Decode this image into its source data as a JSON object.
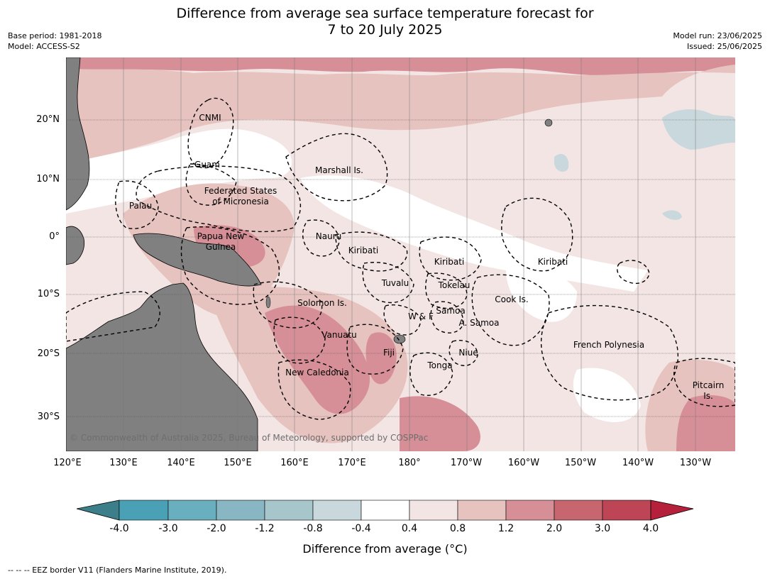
{
  "title_line1": "Difference from average sea surface temperature forecast for",
  "title_line2": "7 to 20 July 2025",
  "base_period": "Base period: 1981-2018",
  "model": "Model: ACCESS-S2",
  "model_run": "Model run: 23/06/2025",
  "issued": "Issued: 25/06/2025",
  "lat_labels": [
    "20°N",
    "10°N",
    "0°",
    "10°S",
    "20°S",
    "30°S"
  ],
  "lon_labels": [
    "120°E",
    "130°E",
    "140°E",
    "150°E",
    "160°E",
    "170°E",
    "180°",
    "170°W",
    "160°W",
    "150°W",
    "140°W",
    "130°W"
  ],
  "places": [
    "CNMI",
    "Guam",
    "Marshall Is.",
    "Federated States",
    "of Micronesia",
    "Palau",
    "Papua New",
    "Guinea",
    "Nauru",
    "Kiribati",
    "Kiribati",
    "Kiribati",
    "Tuvalu",
    "Tokelau",
    "Cook Is.",
    "Solomon Is.",
    "Samoa",
    "W & F",
    "A. Samoa",
    "Vanuatu",
    "Fiji",
    "Niue",
    "Tonga",
    "French Polynesia",
    "New Caledonia",
    "Pitcairn",
    "Is."
  ],
  "copyright": "© Commonwealth of Australia 2025, Bureau of Meteorology, supported by COSPPac",
  "colorbar": {
    "label": "Difference from average (°C)",
    "ticks": [
      "-4.0",
      "-3.0",
      "-2.0",
      "-1.2",
      "-0.8",
      "-0.4",
      "0.4",
      "0.8",
      "1.2",
      "2.0",
      "3.0",
      "4.0"
    ],
    "colors": [
      "#3c7f8b",
      "#4aa0b4",
      "#6aafbf",
      "#88b7c3",
      "#a6c6cb",
      "#c9d8dc",
      "#ffffff",
      "#f3e5e4",
      "#e7c3bf",
      "#d68f97",
      "#c86670",
      "#bd4556",
      "#b5203b"
    ]
  },
  "footnote": "--  --  -- EEZ border V11 (Flanders Marine Institute, 2019)."
}
